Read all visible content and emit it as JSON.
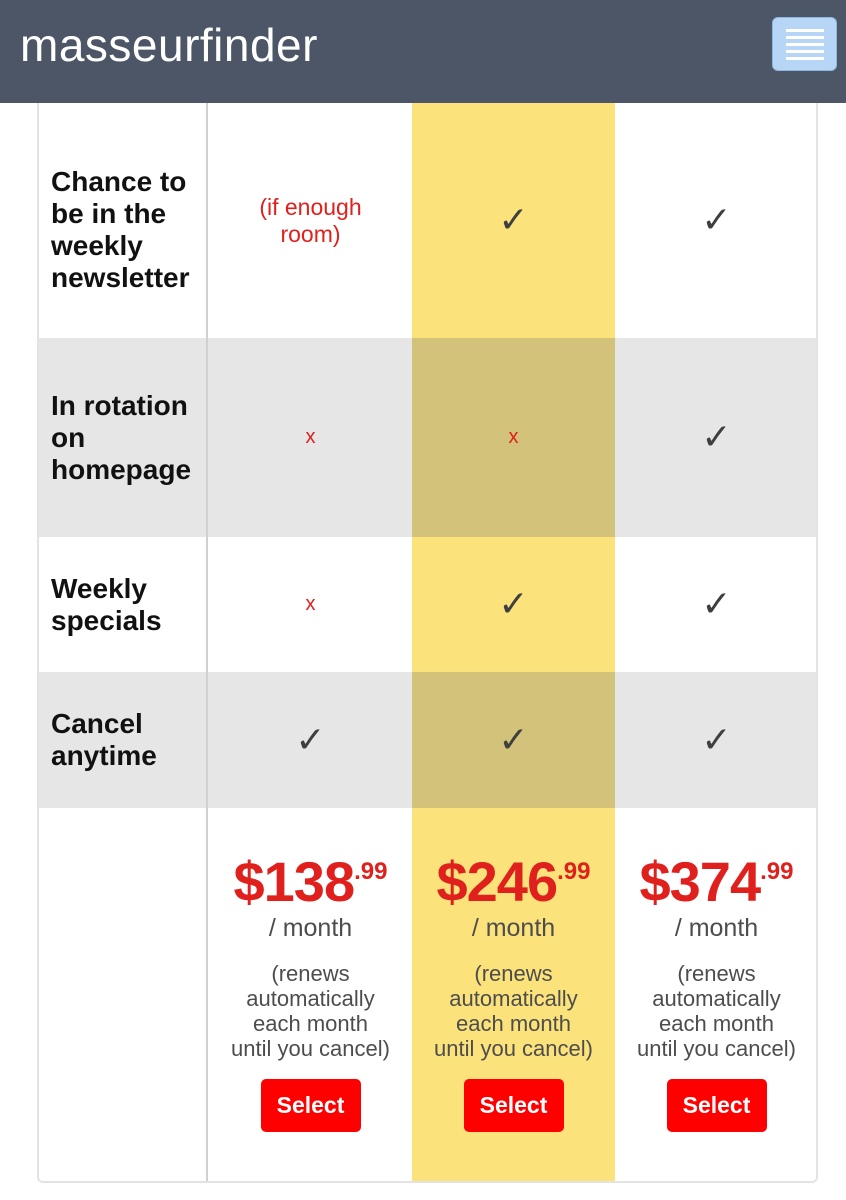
{
  "header": {
    "logo": "masseurfinder",
    "menu_icon": "hamburger-menu-icon"
  },
  "features": [
    {
      "label": "Chance to be in the weekly newsletter",
      "tier1": "(if enough room)",
      "tier2": "✓",
      "tier3": "✓"
    },
    {
      "label": "In rotation on homepage",
      "tier1": "x",
      "tier2": "x",
      "tier3": "✓"
    },
    {
      "label": "Weekly specials",
      "tier1": "x",
      "tier2": "✓",
      "tier3": "✓"
    },
    {
      "label": "Cancel anytime",
      "tier1": "✓",
      "tier2": "✓",
      "tier3": "✓"
    }
  ],
  "plans": [
    {
      "price_whole": "$138",
      "price_cents": ".99",
      "period": "/ month",
      "renews": "(renews automatically each month until you cancel)",
      "button": "Select"
    },
    {
      "price_whole": "$246",
      "price_cents": ".99",
      "period": "/ month",
      "renews": "(renews automatically each month until you cancel)",
      "button": "Select"
    },
    {
      "price_whole": "$374",
      "price_cents": ".99",
      "period": "/ month",
      "renews": "(renews automatically each month until you cancel)",
      "button": "Select"
    }
  ],
  "colors": {
    "header_bg": "#4c5666",
    "highlight": "#fbe27a",
    "price_red": "#e0201c",
    "button_red": "#ff0000"
  }
}
